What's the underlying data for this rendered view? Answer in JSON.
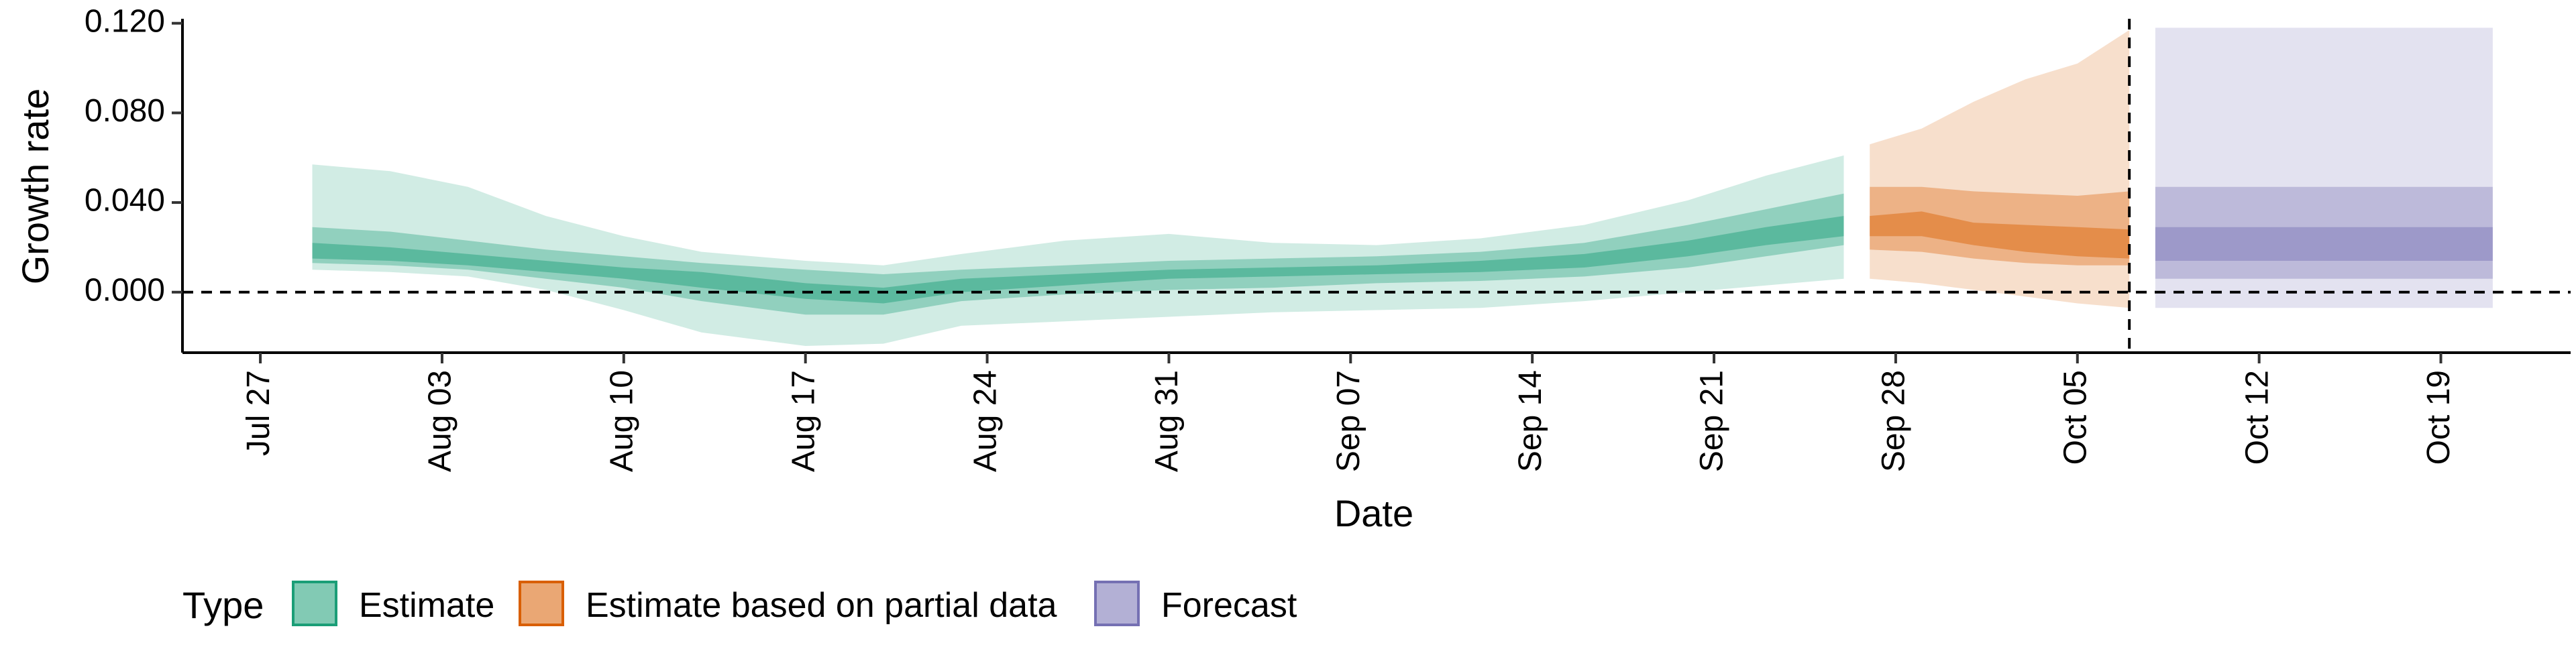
{
  "chart_data": {
    "type": "area",
    "xlabel": "Date",
    "ylabel": "Growth rate",
    "x_axis": {
      "type": "date",
      "range": [
        "2020-07-24",
        "2020-10-24"
      ],
      "ticks": [
        {
          "date": "2020-07-27",
          "label": "Jul 27"
        },
        {
          "date": "2020-08-03",
          "label": "Aug 03"
        },
        {
          "date": "2020-08-10",
          "label": "Aug 10"
        },
        {
          "date": "2020-08-17",
          "label": "Aug 17"
        },
        {
          "date": "2020-08-24",
          "label": "Aug 24"
        },
        {
          "date": "2020-08-31",
          "label": "Aug 31"
        },
        {
          "date": "2020-09-07",
          "label": "Sep 07"
        },
        {
          "date": "2020-09-14",
          "label": "Sep 14"
        },
        {
          "date": "2020-09-21",
          "label": "Sep 21"
        },
        {
          "date": "2020-09-28",
          "label": "Sep 28"
        },
        {
          "date": "2020-10-05",
          "label": "Oct 05"
        },
        {
          "date": "2020-10-12",
          "label": "Oct 12"
        },
        {
          "date": "2020-10-19",
          "label": "Oct 19"
        }
      ]
    },
    "y_axis": {
      "range": [
        -0.027,
        0.122
      ],
      "ticks": [
        {
          "value": 0.0,
          "label": "0.000"
        },
        {
          "value": 0.04,
          "label": "0.040"
        },
        {
          "value": 0.08,
          "label": "0.080"
        },
        {
          "value": 0.12,
          "label": "0.120"
        }
      ]
    },
    "reference_lines": [
      {
        "axis": "y",
        "value": 0.0,
        "style": "dashed"
      },
      {
        "axis": "x",
        "value": "2020-10-07",
        "style": "dashed"
      }
    ],
    "legend": {
      "title": "Type",
      "position": "bottom-left",
      "entries": [
        {
          "label": "Estimate",
          "color": "#1b9e77"
        },
        {
          "label": "Estimate based on partial data",
          "color": "#d95f02"
        },
        {
          "label": "Forecast",
          "color": "#7570b3"
        }
      ]
    },
    "series": [
      {
        "legend_index": 0,
        "color": "#1b9e77",
        "points": [
          {
            "x": "2020-07-29",
            "lo90": 0.01,
            "lo50": 0.013,
            "lo20": 0.015,
            "hi20": 0.022,
            "hi50": 0.029,
            "hi90": 0.057
          },
          {
            "x": "2020-08-01",
            "lo90": 0.009,
            "lo50": 0.012,
            "lo20": 0.014,
            "hi20": 0.02,
            "hi50": 0.027,
            "hi90": 0.054
          },
          {
            "x": "2020-08-04",
            "lo90": 0.007,
            "lo50": 0.01,
            "lo20": 0.012,
            "hi20": 0.017,
            "hi50": 0.023,
            "hi90": 0.047
          },
          {
            "x": "2020-08-07",
            "lo90": 0.001,
            "lo50": 0.006,
            "lo20": 0.009,
            "hi20": 0.014,
            "hi50": 0.019,
            "hi90": 0.034
          },
          {
            "x": "2020-08-10",
            "lo90": -0.008,
            "lo50": 0.002,
            "lo20": 0.006,
            "hi20": 0.011,
            "hi50": 0.016,
            "hi90": 0.025
          },
          {
            "x": "2020-08-13",
            "lo90": -0.018,
            "lo50": -0.004,
            "lo20": 0.002,
            "hi20": 0.009,
            "hi50": 0.013,
            "hi90": 0.018
          },
          {
            "x": "2020-08-17",
            "lo90": -0.024,
            "lo50": -0.01,
            "lo20": -0.003,
            "hi20": 0.004,
            "hi50": 0.01,
            "hi90": 0.014
          },
          {
            "x": "2020-08-20",
            "lo90": -0.023,
            "lo50": -0.01,
            "lo20": -0.005,
            "hi20": 0.002,
            "hi50": 0.008,
            "hi90": 0.012
          },
          {
            "x": "2020-08-23",
            "lo90": -0.015,
            "lo50": -0.004,
            "lo20": 0.0,
            "hi20": 0.006,
            "hi50": 0.01,
            "hi90": 0.017
          },
          {
            "x": "2020-08-27",
            "lo90": -0.013,
            "lo50": -0.001,
            "lo20": 0.003,
            "hi20": 0.008,
            "hi50": 0.012,
            "hi90": 0.023
          },
          {
            "x": "2020-08-31",
            "lo90": -0.011,
            "lo50": 0.001,
            "lo20": 0.006,
            "hi20": 0.01,
            "hi50": 0.014,
            "hi90": 0.026
          },
          {
            "x": "2020-09-04",
            "lo90": -0.009,
            "lo50": 0.002,
            "lo20": 0.007,
            "hi20": 0.011,
            "hi50": 0.015,
            "hi90": 0.022
          },
          {
            "x": "2020-09-08",
            "lo90": -0.008,
            "lo50": 0.004,
            "lo20": 0.008,
            "hi20": 0.012,
            "hi50": 0.016,
            "hi90": 0.021
          },
          {
            "x": "2020-09-12",
            "lo90": -0.007,
            "lo50": 0.005,
            "lo20": 0.009,
            "hi20": 0.014,
            "hi50": 0.018,
            "hi90": 0.024
          },
          {
            "x": "2020-09-16",
            "lo90": -0.004,
            "lo50": 0.007,
            "lo20": 0.011,
            "hi20": 0.017,
            "hi50": 0.022,
            "hi90": 0.03
          },
          {
            "x": "2020-09-20",
            "lo90": 0.0,
            "lo50": 0.011,
            "lo20": 0.016,
            "hi20": 0.023,
            "hi50": 0.03,
            "hi90": 0.041
          },
          {
            "x": "2020-09-23",
            "lo90": 0.003,
            "lo50": 0.016,
            "lo20": 0.021,
            "hi20": 0.029,
            "hi50": 0.037,
            "hi90": 0.052
          },
          {
            "x": "2020-09-26",
            "lo90": 0.006,
            "lo50": 0.021,
            "lo20": 0.025,
            "hi20": 0.034,
            "hi50": 0.044,
            "hi90": 0.061
          }
        ]
      },
      {
        "legend_index": 1,
        "color": "#d95f02",
        "points": [
          {
            "x": "2020-09-27",
            "lo90": 0.006,
            "lo50": 0.019,
            "lo20": 0.025,
            "hi20": 0.034,
            "hi50": 0.047,
            "hi90": 0.066
          },
          {
            "x": "2020-09-29",
            "lo90": 0.004,
            "lo50": 0.018,
            "lo20": 0.025,
            "hi20": 0.036,
            "hi50": 0.047,
            "hi90": 0.073
          },
          {
            "x": "2020-10-01",
            "lo90": 0.001,
            "lo50": 0.015,
            "lo20": 0.021,
            "hi20": 0.031,
            "hi50": 0.045,
            "hi90": 0.085
          },
          {
            "x": "2020-10-03",
            "lo90": -0.002,
            "lo50": 0.013,
            "lo20": 0.018,
            "hi20": 0.03,
            "hi50": 0.044,
            "hi90": 0.095
          },
          {
            "x": "2020-10-05",
            "lo90": -0.005,
            "lo50": 0.012,
            "lo20": 0.016,
            "hi20": 0.029,
            "hi50": 0.043,
            "hi90": 0.102
          },
          {
            "x": "2020-10-07",
            "lo90": -0.007,
            "lo50": 0.012,
            "lo20": 0.015,
            "hi20": 0.028,
            "hi50": 0.045,
            "hi90": 0.117
          }
        ]
      },
      {
        "legend_index": 2,
        "color": "#7570b3",
        "points": [
          {
            "x": "2020-10-08",
            "lo90": -0.007,
            "lo50": 0.006,
            "lo20": 0.014,
            "hi20": 0.029,
            "hi50": 0.047,
            "hi90": 0.118
          },
          {
            "x": "2020-10-21",
            "lo90": -0.007,
            "lo50": 0.006,
            "lo20": 0.014,
            "hi20": 0.029,
            "hi50": 0.047,
            "hi90": 0.118
          }
        ]
      }
    ]
  }
}
